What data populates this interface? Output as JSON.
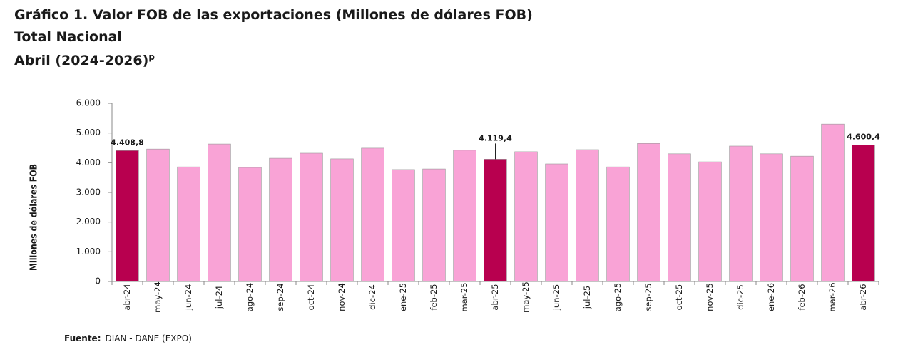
{
  "chart_data": {
    "type": "bar",
    "title": "Gráfico 1. Valor FOB de las exportaciones (Millones de dólares FOB)",
    "subtitle": "Total Nacional",
    "period": "Abril (2024-2026)",
    "period_note": "p",
    "y_label": "Millones de dólares FOB",
    "source_label": "Fuente:",
    "source": "DIAN - DANE (EXPO)",
    "categories": [
      "abr-24",
      "may-24",
      "jun-24",
      "jul-24",
      "ago-24",
      "sep-24",
      "oct-24",
      "nov-24",
      "dic-24",
      "ene-25",
      "feb-25",
      "mar-25",
      "abr-25",
      "may-25",
      "jun-25",
      "jul-25",
      "ago-25",
      "sep-25",
      "oct-25",
      "nov-25",
      "dic-25",
      "ene-26",
      "feb-26",
      "mar-26",
      "abr-26"
    ],
    "values": [
      4408.8,
      4460,
      3860,
      4630,
      3840,
      4150,
      4320,
      4130,
      4490,
      3770,
      3790,
      4420,
      4119.4,
      4370,
      3960,
      4440,
      3860,
      4650,
      4300,
      4030,
      4560,
      4300,
      4220,
      5300,
      4600.4
    ],
    "value_labels": [
      "4.408,8",
      null,
      null,
      null,
      null,
      null,
      null,
      null,
      null,
      null,
      null,
      null,
      "4.119,4",
      null,
      null,
      null,
      null,
      null,
      null,
      null,
      null,
      null,
      null,
      null,
      "4.600,4"
    ],
    "colors": [
      "#b8004f",
      "#f9a3d6",
      "#f9a3d6",
      "#f9a3d6",
      "#f9a3d6",
      "#f9a3d6",
      "#f9a3d6",
      "#f9a3d6",
      "#f9a3d6",
      "#f9a3d6",
      "#f9a3d6",
      "#f9a3d6",
      "#b8004f",
      "#f9a3d6",
      "#f9a3d6",
      "#f9a3d6",
      "#f9a3d6",
      "#f9a3d6",
      "#f9a3d6",
      "#f9a3d6",
      "#f9a3d6",
      "#f9a3d6",
      "#f9a3d6",
      "#f9a3d6",
      "#b8004f"
    ],
    "ylim": [
      0,
      6000
    ],
    "yticks": [
      0,
      {
        "value": 1000,
        "label": "1.000"
      },
      {
        "value": 2000,
        "label": "2.000"
      },
      {
        "value": 3000,
        "label": "3.000"
      },
      {
        "value": 4000,
        "label": "4.000"
      },
      {
        "value": 5000,
        "label": "5.000"
      },
      {
        "value": 6000,
        "label": "6.000"
      }
    ],
    "grid": false
  }
}
